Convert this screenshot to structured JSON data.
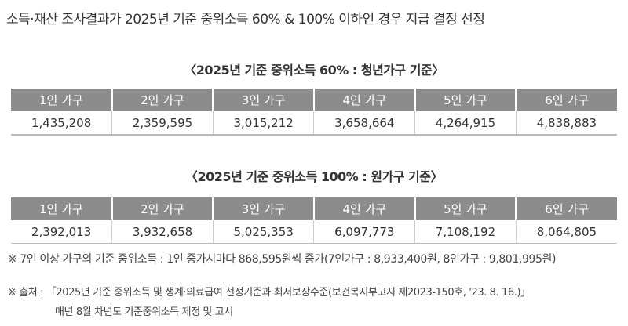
{
  "title": "소득·재산 조사결과가 2025년 기준 중위소득 60% & 100% 이하인 경우 지급 결정 선정",
  "tables": [
    {
      "caption": "〈2025년 기준 중위소득 60% : 청년가구 기준〉",
      "headers": [
        "1인 가구",
        "2인 가구",
        "3인 가구",
        "4인 가구",
        "5인 가구",
        "6인 가구"
      ],
      "values": [
        "1,435,208",
        "2,359,595",
        "3,015,212",
        "3,658,664",
        "4,264,915",
        "4,838,883"
      ]
    },
    {
      "caption": "〈2025년 기준 중위소득 100% : 원가구 기준〉",
      "headers": [
        "1인 가구",
        "2인 가구",
        "3인 가구",
        "4인 가구",
        "5인 가구",
        "6인 가구"
      ],
      "values": [
        "2,392,013",
        "3,932,658",
        "5,025,353",
        "6,097,773",
        "7,108,192",
        "8,064,805"
      ]
    }
  ],
  "notes": {
    "extra": "※ 7인 이상 가구의 기준 중위소득 : 1인 증가시마다 868,595원씩 증가(7인가구 : 8,933,400원, 8인가구 : 9,801,995원)",
    "source": "※ 출처 : 「2025년 기준 중위소득 및 생계·의료급여 선정기준과 최저보장수준(보건복지부고시 제2023-150호, '23. 8. 16.)」",
    "source2": "매년 8월 차년도 기준중위소득 제정 및 고시"
  },
  "colors": {
    "header_bg": "#8c8c8c"
  }
}
